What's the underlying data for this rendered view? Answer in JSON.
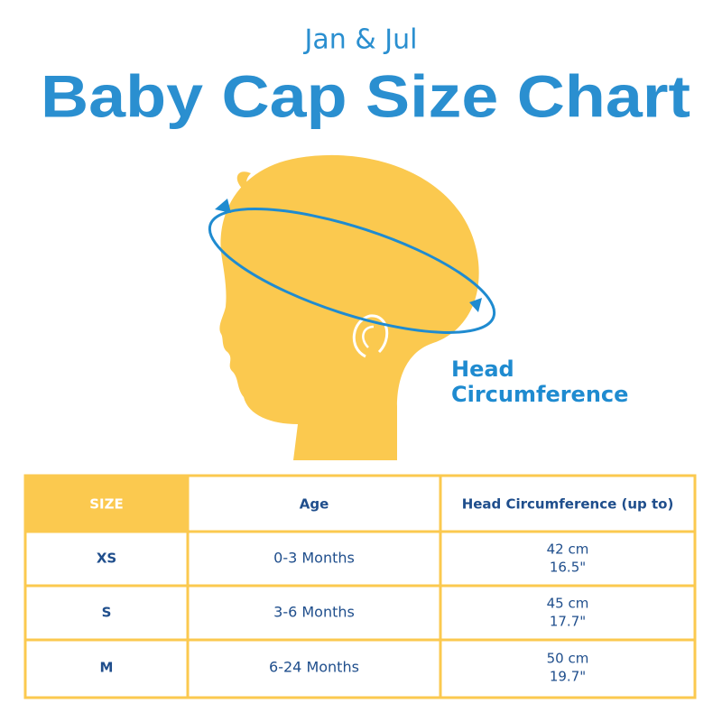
{
  "header": {
    "brand": "Jan & Jul",
    "title": "Baby Cap Size Chart"
  },
  "diagram": {
    "label": [
      "Head",
      "Circumference"
    ]
  },
  "table": {
    "headers": [
      "SIZE",
      "Age",
      "Head Circumference (up to)"
    ],
    "rows": [
      [
        "XS",
        "0-3 Months",
        [
          "42 cm",
          "16.5\""
        ]
      ],
      [
        "S",
        "3-6 Months",
        [
          "45 cm",
          "17.7\""
        ]
      ],
      [
        "M",
        "6-24 Months",
        [
          "50 cm",
          "19.7\""
        ]
      ]
    ]
  }
}
